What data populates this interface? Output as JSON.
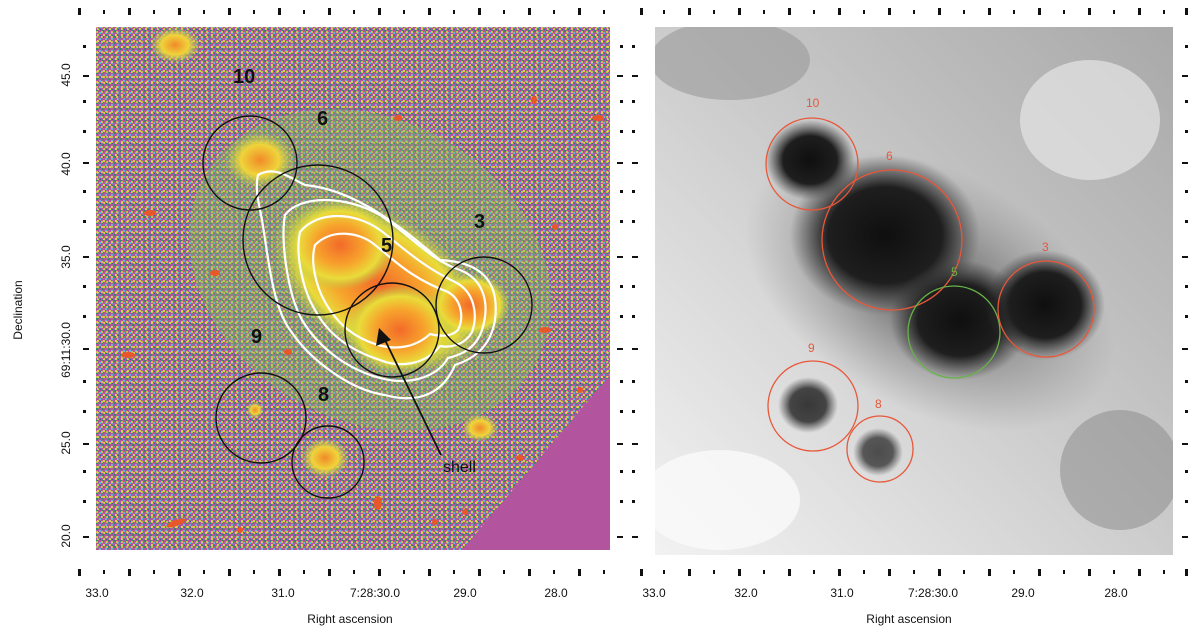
{
  "colors": {
    "left_background": "#b2559e",
    "left_circle": "#111111",
    "right_circle_red": "#e8573a",
    "right_circle_green": "#67b447",
    "contour": "#ffffff",
    "gray_bg": "#cfcfcf"
  },
  "left_panel": {
    "ylabel": "Declination",
    "xlabel": "Right ascension",
    "y_ticks": [
      "45.0",
      "40.0",
      "35.0",
      "69:11:30.0",
      "25.0",
      "20.0"
    ],
    "x_ticks": [
      "33.0",
      "32.0",
      "31.0",
      "7:28:30.0",
      "29.0",
      "28.0"
    ],
    "region_labels": [
      "10",
      "6",
      "3",
      "5",
      "9",
      "8"
    ],
    "annotation": "shell"
  },
  "right_panel": {
    "xlabel": "Right ascension",
    "x_ticks": [
      "33.0",
      "32.0",
      "31.0",
      "7:28:30.0",
      "29.0",
      "28.0"
    ],
    "region_labels": [
      "10",
      "6",
      "3",
      "5",
      "9",
      "8"
    ]
  }
}
